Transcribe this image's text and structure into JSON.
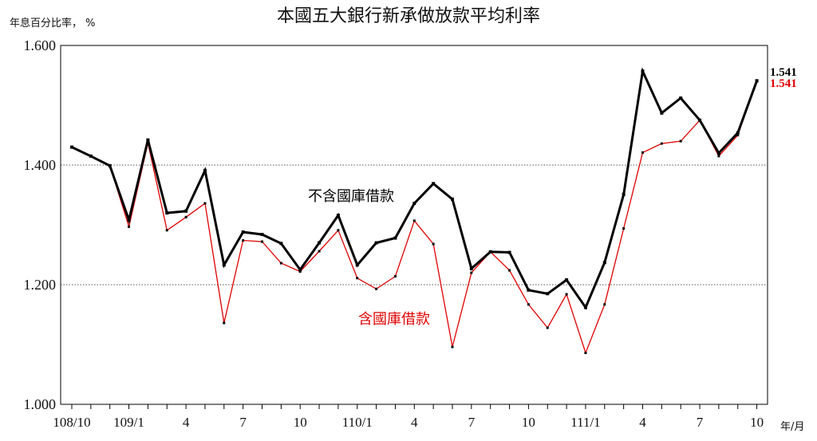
{
  "chart_data": {
    "type": "line",
    "title": "本國五大銀行新承做放款平均利率",
    "ylabel": "年息百分比率， %",
    "xlabel": "年/月",
    "ylim": [
      1.0,
      1.6
    ],
    "yticks": [
      "1.000",
      "1.200",
      "1.400",
      "1.600"
    ],
    "ytick_values": [
      1.0,
      1.2,
      1.4,
      1.6
    ],
    "grid": "horizontal dotted at 1.200 and 1.400",
    "categories": [
      "108/10",
      "108/11",
      "108/12",
      "109/1",
      "109/2",
      "109/3",
      "109/4",
      "109/5",
      "109/6",
      "109/7",
      "109/8",
      "109/9",
      "109/10",
      "109/11",
      "109/12",
      "110/1",
      "110/2",
      "110/3",
      "110/4",
      "110/5",
      "110/6",
      "110/7",
      "110/8",
      "110/9",
      "110/10",
      "110/11",
      "110/12",
      "111/1",
      "111/2",
      "111/3",
      "111/4",
      "111/5",
      "111/6",
      "111/7",
      "111/8",
      "111/9",
      "111/10"
    ],
    "xtick_labels": [
      {
        "index": 0,
        "label": "108/10"
      },
      {
        "index": 3,
        "label": "109/1"
      },
      {
        "index": 6,
        "label": "4"
      },
      {
        "index": 9,
        "label": "7"
      },
      {
        "index": 12,
        "label": "10"
      },
      {
        "index": 15,
        "label": "110/1"
      },
      {
        "index": 18,
        "label": "4"
      },
      {
        "index": 21,
        "label": "7"
      },
      {
        "index": 24,
        "label": "10"
      },
      {
        "index": 27,
        "label": "111/1"
      },
      {
        "index": 30,
        "label": "4"
      },
      {
        "index": 33,
        "label": "7"
      },
      {
        "index": 36,
        "label": "10"
      }
    ],
    "series": [
      {
        "name": "不含國庫借款",
        "color": "#000000",
        "values": [
          1.43,
          1.415,
          1.399,
          1.308,
          1.442,
          1.32,
          1.323,
          1.391,
          1.233,
          1.288,
          1.284,
          1.269,
          1.225,
          1.27,
          1.316,
          1.233,
          1.27,
          1.278,
          1.336,
          1.369,
          1.343,
          1.227,
          1.255,
          1.254,
          1.191,
          1.185,
          1.208,
          1.162,
          1.237,
          1.351,
          1.557,
          1.487,
          1.512,
          1.475,
          1.42,
          1.454,
          1.541
        ],
        "end_label": "1.541"
      },
      {
        "name": "含國庫借款",
        "color": "#e00000",
        "values": [
          1.43,
          1.415,
          1.399,
          1.297,
          1.437,
          1.291,
          1.313,
          1.336,
          1.136,
          1.274,
          1.272,
          1.236,
          1.222,
          1.256,
          1.291,
          1.211,
          1.193,
          1.214,
          1.307,
          1.268,
          1.096,
          1.22,
          1.255,
          1.224,
          1.167,
          1.128,
          1.184,
          1.086,
          1.167,
          1.294,
          1.421,
          1.436,
          1.44,
          1.475,
          1.415,
          1.45,
          1.541
        ],
        "end_label": "1.541"
      }
    ]
  }
}
